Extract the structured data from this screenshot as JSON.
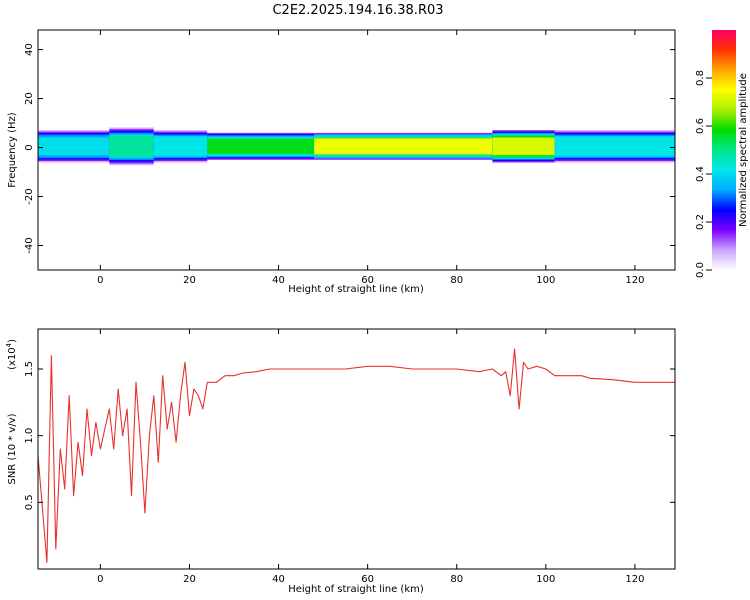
{
  "title": "C2E2.2025.194.16.38.R03",
  "chart_data": [
    {
      "type": "heatmap",
      "xlabel": "Height of straight line (km)",
      "ylabel": "Frequency (Hz)",
      "xlim": [
        -14,
        129
      ],
      "ylim": [
        -50,
        48
      ],
      "xticks": [
        0,
        20,
        40,
        60,
        80,
        100,
        120
      ],
      "yticks": [
        -40,
        -20,
        0,
        20,
        40
      ],
      "band": {
        "center_freq": 0.5,
        "segments": [
          {
            "x": [
              -14,
              2
            ],
            "half_width_hz": 3.0,
            "amplitude": 0.42
          },
          {
            "x": [
              2,
              12
            ],
            "half_width_hz": 3.5,
            "amplitude": 0.48
          },
          {
            "x": [
              12,
              24
            ],
            "half_width_hz": 3.0,
            "amplitude": 0.45
          },
          {
            "x": [
              24,
              48
            ],
            "half_width_hz": 2.5,
            "amplitude": 0.55
          },
          {
            "x": [
              48,
              88
            ],
            "half_width_hz": 2.5,
            "amplitude": 0.75
          },
          {
            "x": [
              88,
              102
            ],
            "half_width_hz": 3.0,
            "amplitude": 0.72
          },
          {
            "x": [
              102,
              129
            ],
            "half_width_hz": 3.0,
            "amplitude": 0.45
          }
        ]
      },
      "colorbar": {
        "label": "Normalized spectral amplitude",
        "range": [
          0,
          1
        ],
        "ticks": [
          0.0,
          0.2,
          0.4,
          0.6,
          0.8
        ],
        "colors": [
          "#ffffff",
          "#c9a5ff",
          "#7b00ff",
          "#0000ff",
          "#00aaff",
          "#00e6e6",
          "#00e68c",
          "#00dd00",
          "#aaee00",
          "#ffff00",
          "#ffa500",
          "#ff3300",
          "#ff0066"
        ]
      }
    },
    {
      "type": "line",
      "xlabel": "Height of straight line (km)",
      "ylabel": "SNR (10 * v/v)",
      "yscale_label": "(x10",
      "yscale_exp": "4",
      "xlim": [
        -14,
        129
      ],
      "ylim": [
        0.0,
        1.8
      ],
      "xticks": [
        0,
        20,
        40,
        60,
        80,
        100,
        120
      ],
      "yticks": [
        0.5,
        1.0,
        1.5
      ],
      "color": "#e8302e",
      "series": [
        {
          "x": [
            -14,
            -13,
            -12,
            -11,
            -10,
            -9,
            -8,
            -7,
            -6,
            -5,
            -4,
            -3,
            -2,
            -1,
            0,
            1,
            2,
            3,
            4,
            5,
            6,
            7,
            8,
            9,
            10,
            11,
            12,
            13,
            14,
            15,
            16,
            17,
            18,
            19,
            20,
            21,
            22,
            23,
            24,
            26,
            28,
            30,
            32,
            35,
            38,
            40,
            45,
            50,
            55,
            60,
            65,
            70,
            75,
            80,
            85,
            88,
            90,
            91,
            92,
            93,
            94,
            95,
            96,
            98,
            100,
            102,
            105,
            108,
            110,
            115,
            120,
            125,
            129
          ],
          "values": [
            0.85,
            0.45,
            0.05,
            1.6,
            0.15,
            0.9,
            0.6,
            1.3,
            0.55,
            0.95,
            0.7,
            1.2,
            0.85,
            1.1,
            0.9,
            1.05,
            1.2,
            0.9,
            1.35,
            1.0,
            1.2,
            0.55,
            1.4,
            0.95,
            0.42,
            1.0,
            1.3,
            0.8,
            1.45,
            1.05,
            1.25,
            0.95,
            1.3,
            1.55,
            1.15,
            1.35,
            1.3,
            1.2,
            1.4,
            1.4,
            1.45,
            1.45,
            1.47,
            1.48,
            1.5,
            1.5,
            1.5,
            1.5,
            1.5,
            1.52,
            1.52,
            1.5,
            1.5,
            1.5,
            1.48,
            1.5,
            1.45,
            1.48,
            1.3,
            1.65,
            1.2,
            1.55,
            1.5,
            1.52,
            1.5,
            1.45,
            1.45,
            1.45,
            1.43,
            1.42,
            1.4,
            1.4,
            1.4
          ]
        }
      ]
    }
  ]
}
